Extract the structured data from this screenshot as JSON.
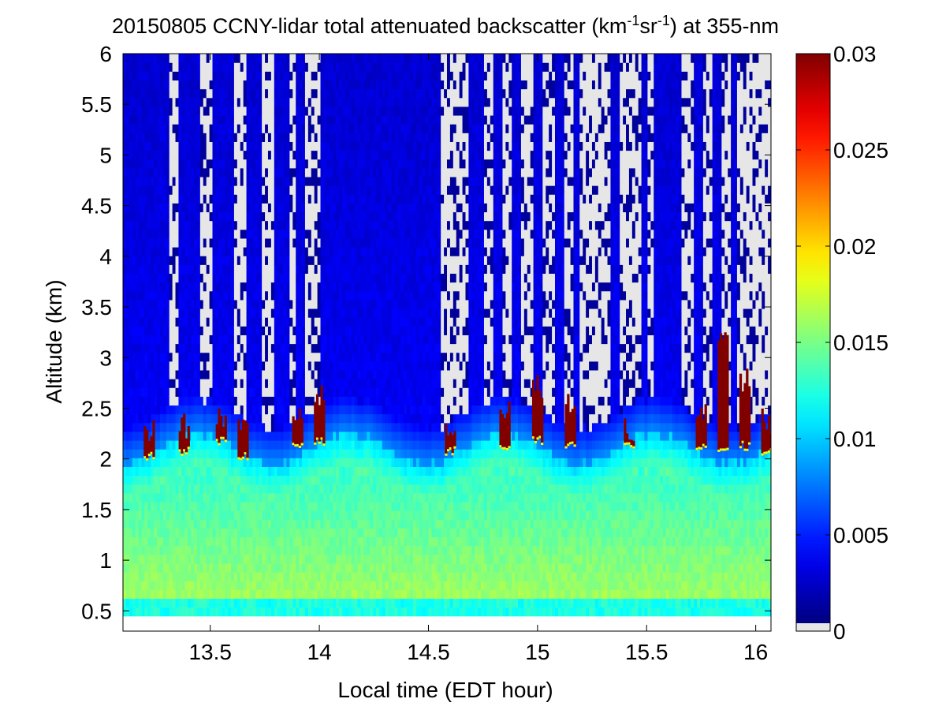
{
  "chart_data": {
    "type": "heatmap",
    "title_main": "20150805 CCNY-lidar total attenuated backscatter (km",
    "title_sup1": "-1",
    "title_mid": "sr",
    "title_sup2": "-1",
    "title_end": ") at 355-nm",
    "xlabel": "Local time (EDT hour)",
    "ylabel": "Altitude (km)",
    "xlim": [
      13.1,
      16.07
    ],
    "ylim": [
      0.3,
      6.0
    ],
    "x_ticks": [
      13.5,
      14,
      14.5,
      15,
      15.5,
      16
    ],
    "x_tick_labels": [
      "13.5",
      "14",
      "14.5",
      "15",
      "15.5",
      "16"
    ],
    "y_ticks": [
      0.5,
      1,
      1.5,
      2,
      2.5,
      3,
      3.5,
      4,
      4.5,
      5,
      5.5,
      6
    ],
    "y_tick_labels": [
      "0.5",
      "1",
      "1.5",
      "2",
      "2.5",
      "3",
      "3.5",
      "4",
      "4.5",
      "5",
      "5.5",
      "6"
    ],
    "data_altitude_min_km": 0.45,
    "colorbar": {
      "range": [
        0,
        0.03
      ],
      "ticks": [
        0,
        0.005,
        0.01,
        0.015,
        0.02,
        0.025,
        0.03
      ],
      "tick_labels": [
        "0",
        "0.005",
        "0.01",
        "0.015",
        "0.02",
        "0.025",
        "0.03"
      ],
      "colormap": "jet",
      "nodata_color": "#e6e6e6"
    },
    "boundary_layer_top_km": 2.1,
    "boundary_layer_value": 0.014,
    "near_surface_value": 0.016,
    "free_troposphere_value": 0.004,
    "cloud_value": 0.03,
    "cloud_events": [
      {
        "time": 13.22,
        "base_km": 2.0,
        "top_km": 2.4
      },
      {
        "time": 13.38,
        "base_km": 2.05,
        "top_km": 2.45
      },
      {
        "time": 13.55,
        "base_km": 2.15,
        "top_km": 2.5
      },
      {
        "time": 13.65,
        "base_km": 2.0,
        "top_km": 2.4
      },
      {
        "time": 13.9,
        "base_km": 2.1,
        "top_km": 2.6
      },
      {
        "time": 14.0,
        "base_km": 2.15,
        "top_km": 2.75
      },
      {
        "time": 14.6,
        "base_km": 2.05,
        "top_km": 2.35
      },
      {
        "time": 14.85,
        "base_km": 2.1,
        "top_km": 2.65
      },
      {
        "time": 15.0,
        "base_km": 2.15,
        "top_km": 2.85
      },
      {
        "time": 15.15,
        "base_km": 2.1,
        "top_km": 2.65
      },
      {
        "time": 15.42,
        "base_km": 2.1,
        "top_km": 2.4
      },
      {
        "time": 15.75,
        "base_km": 2.1,
        "top_km": 2.6
      },
      {
        "time": 15.85,
        "base_km": 2.05,
        "top_km": 3.35
      },
      {
        "time": 15.95,
        "base_km": 2.1,
        "top_km": 2.9
      },
      {
        "time": 16.05,
        "base_km": 2.05,
        "top_km": 2.5
      }
    ],
    "nodata_intervals": [
      [
        13.31,
        13.36
      ],
      [
        13.46,
        13.51
      ],
      [
        13.61,
        13.66
      ],
      [
        13.73,
        13.79
      ],
      [
        13.86,
        13.89
      ],
      [
        13.94,
        14.0
      ],
      [
        14.56,
        14.68
      ],
      [
        14.76,
        14.8
      ],
      [
        14.84,
        14.88
      ],
      [
        14.92,
        14.98
      ],
      [
        15.03,
        15.08
      ],
      [
        15.12,
        15.17
      ],
      [
        15.2,
        15.34
      ],
      [
        15.38,
        15.47
      ],
      [
        15.51,
        15.53
      ],
      [
        15.66,
        15.72
      ],
      [
        15.76,
        15.8
      ],
      [
        15.84,
        15.89
      ],
      [
        15.92,
        16.07
      ]
    ],
    "grid": false
  }
}
